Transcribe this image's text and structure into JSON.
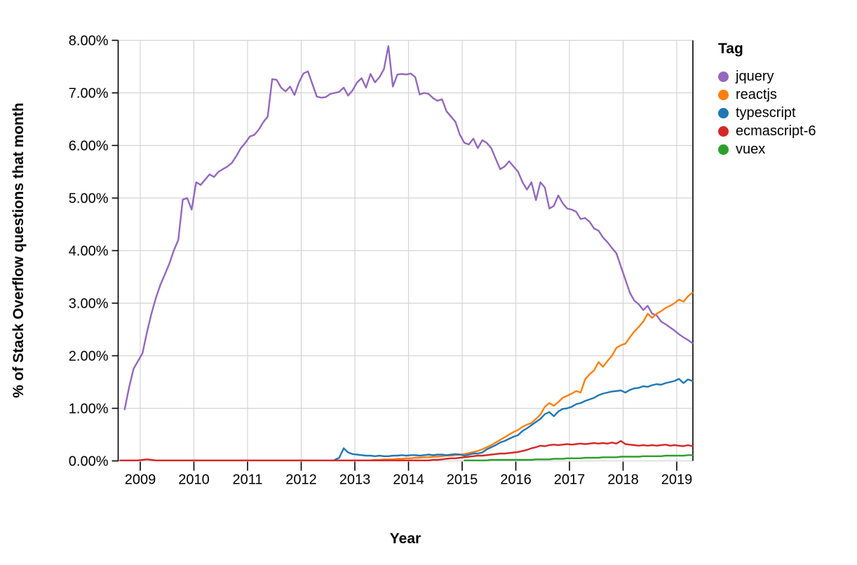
{
  "chart_data": {
    "type": "line",
    "title": "",
    "xlabel": "Year",
    "ylabel": "% of Stack Overflow questions that month",
    "legend_title": "Tag",
    "legend_position": "right",
    "grid": true,
    "xlim": [
      2008.58,
      2019.31
    ],
    "ylim": [
      0,
      8
    ],
    "x_tick_labels": [
      "2009",
      "2010",
      "2011",
      "2012",
      "2013",
      "2014",
      "2015",
      "2016",
      "2017",
      "2018",
      "2019"
    ],
    "y_tick_labels": [
      "0.00%",
      "1.00%",
      "2.00%",
      "3.00%",
      "4.00%",
      "5.00%",
      "6.00%",
      "7.00%",
      "8.00%"
    ],
    "y_tick_values": [
      0,
      1,
      2,
      3,
      4,
      5,
      6,
      7,
      8
    ],
    "x_tick_values": [
      2009,
      2010,
      2011,
      2012,
      2013,
      2014,
      2015,
      2016,
      2017,
      2018,
      2019
    ],
    "series": [
      {
        "name": "jquery",
        "color": "#9467bd",
        "start": "2008-09",
        "cadence": "monthly",
        "monthly_values": [
          0.98,
          1.4,
          1.75,
          1.9,
          2.05,
          2.45,
          2.8,
          3.1,
          3.35,
          3.55,
          3.75,
          4.0,
          4.2,
          4.97,
          5.0,
          4.78,
          5.3,
          5.25,
          5.35,
          5.45,
          5.4,
          5.5,
          5.55,
          5.6,
          5.67,
          5.8,
          5.95,
          6.05,
          6.17,
          6.2,
          6.3,
          6.44,
          6.55,
          7.26,
          7.25,
          7.1,
          7.03,
          7.12,
          6.96,
          7.2,
          7.37,
          7.41,
          7.17,
          6.93,
          6.91,
          6.92,
          6.98,
          7.0,
          7.02,
          7.1,
          6.95,
          7.05,
          7.2,
          7.28,
          7.1,
          7.36,
          7.2,
          7.3,
          7.45,
          7.89,
          7.12,
          7.35,
          7.36,
          7.35,
          7.37,
          7.3,
          6.97,
          7.0,
          6.98,
          6.9,
          6.85,
          6.88,
          6.65,
          6.55,
          6.45,
          6.2,
          6.05,
          6.02,
          6.13,
          5.95,
          6.1,
          6.05,
          5.95,
          5.75,
          5.55,
          5.6,
          5.7,
          5.6,
          5.5,
          5.3,
          5.16,
          5.3,
          4.96,
          5.3,
          5.2,
          4.8,
          4.85,
          5.05,
          4.9,
          4.8,
          4.78,
          4.74,
          4.6,
          4.62,
          4.55,
          4.42,
          4.38,
          4.25,
          4.16,
          4.05,
          3.95,
          3.7,
          3.45,
          3.2,
          3.05,
          2.98,
          2.87,
          2.95,
          2.8,
          2.77,
          2.65,
          2.6,
          2.54,
          2.48,
          2.41,
          2.35,
          2.3,
          2.24
        ]
      },
      {
        "name": "reactjs",
        "color": "#ff7f0e",
        "start": "2013-02",
        "cadence": "monthly",
        "monthly_values": [
          0.01,
          0.01,
          0.01,
          0.02,
          0.02,
          0.03,
          0.03,
          0.03,
          0.04,
          0.04,
          0.05,
          0.05,
          0.06,
          0.06,
          0.07,
          0.07,
          0.08,
          0.08,
          0.09,
          0.1,
          0.1,
          0.11,
          0.12,
          0.13,
          0.15,
          0.17,
          0.19,
          0.22,
          0.26,
          0.3,
          0.35,
          0.4,
          0.45,
          0.5,
          0.55,
          0.59,
          0.65,
          0.69,
          0.72,
          0.8,
          0.88,
          1.03,
          1.1,
          1.05,
          1.12,
          1.2,
          1.24,
          1.28,
          1.33,
          1.3,
          1.55,
          1.65,
          1.72,
          1.88,
          1.79,
          1.9,
          2.0,
          2.15,
          2.2,
          2.23,
          2.35,
          2.46,
          2.55,
          2.65,
          2.8,
          2.72,
          2.8,
          2.85,
          2.91,
          2.95,
          3.0,
          3.07,
          3.03,
          3.13,
          3.2
        ]
      },
      {
        "name": "typescript",
        "color": "#1f77b4",
        "start": "2012-08",
        "cadence": "monthly",
        "monthly_values": [
          0.02,
          0.06,
          0.24,
          0.16,
          0.13,
          0.12,
          0.11,
          0.1,
          0.1,
          0.09,
          0.1,
          0.09,
          0.09,
          0.1,
          0.1,
          0.11,
          0.1,
          0.11,
          0.11,
          0.1,
          0.11,
          0.12,
          0.11,
          0.12,
          0.12,
          0.11,
          0.12,
          0.13,
          0.12,
          0.1,
          0.12,
          0.14,
          0.14,
          0.16,
          0.22,
          0.26,
          0.3,
          0.35,
          0.38,
          0.42,
          0.46,
          0.49,
          0.57,
          0.62,
          0.68,
          0.74,
          0.8,
          0.89,
          0.93,
          0.85,
          0.94,
          0.99,
          1.0,
          1.03,
          1.08,
          1.1,
          1.14,
          1.17,
          1.2,
          1.25,
          1.28,
          1.3,
          1.32,
          1.33,
          1.34,
          1.3,
          1.35,
          1.38,
          1.39,
          1.42,
          1.41,
          1.44,
          1.46,
          1.45,
          1.48,
          1.5,
          1.52,
          1.56,
          1.48,
          1.55,
          1.52
        ]
      },
      {
        "name": "ecmascript-6",
        "color": "#d62728",
        "start": "2008-08",
        "cadence": "monthly",
        "monthly_values": [
          0.01,
          0.01,
          0.01,
          0.01,
          0.01,
          0.02,
          0.03,
          0.02,
          0.01,
          0.01,
          0.01,
          0.01,
          0.01,
          0.01,
          0.01,
          0.01,
          0.01,
          0.01,
          0.01,
          0.01,
          0.01,
          0.01,
          0.01,
          0.01,
          0.01,
          0.01,
          0.01,
          0.01,
          0.01,
          0.01,
          0.01,
          0.01,
          0.01,
          0.01,
          0.01,
          0.01,
          0.01,
          0.01,
          0.01,
          0.01,
          0.01,
          0.01,
          0.01,
          0.01,
          0.01,
          0.01,
          0.01,
          0.01,
          0.01,
          0.01,
          0.01,
          0.01,
          0.01,
          0.01,
          0.01,
          0.01,
          0.01,
          0.01,
          0.01,
          0.01,
          0.01,
          0.01,
          0.01,
          0.01,
          0.01,
          0.01,
          0.01,
          0.01,
          0.01,
          0.01,
          0.02,
          0.02,
          0.03,
          0.04,
          0.05,
          0.05,
          0.06,
          0.07,
          0.08,
          0.09,
          0.1,
          0.1,
          0.11,
          0.12,
          0.13,
          0.14,
          0.14,
          0.15,
          0.16,
          0.17,
          0.19,
          0.21,
          0.24,
          0.26,
          0.29,
          0.28,
          0.3,
          0.31,
          0.3,
          0.31,
          0.32,
          0.31,
          0.32,
          0.33,
          0.32,
          0.33,
          0.34,
          0.33,
          0.34,
          0.33,
          0.35,
          0.33,
          0.38,
          0.32,
          0.31,
          0.3,
          0.29,
          0.3,
          0.29,
          0.3,
          0.29,
          0.3,
          0.31,
          0.29,
          0.3,
          0.29,
          0.28,
          0.3,
          0.28
        ]
      },
      {
        "name": "vuex",
        "color": "#2ca02c",
        "start": "2015-01",
        "cadence": "monthly",
        "monthly_values": [
          0.01,
          0.01,
          0.01,
          0.01,
          0.01,
          0.01,
          0.02,
          0.02,
          0.02,
          0.02,
          0.02,
          0.02,
          0.02,
          0.02,
          0.02,
          0.02,
          0.03,
          0.03,
          0.03,
          0.03,
          0.04,
          0.04,
          0.04,
          0.05,
          0.05,
          0.05,
          0.05,
          0.06,
          0.06,
          0.06,
          0.06,
          0.07,
          0.07,
          0.07,
          0.07,
          0.08,
          0.08,
          0.08,
          0.08,
          0.08,
          0.09,
          0.09,
          0.09,
          0.09,
          0.09,
          0.1,
          0.1,
          0.1,
          0.1,
          0.1,
          0.11,
          0.11
        ]
      }
    ]
  },
  "legend": {
    "title": "Tag",
    "items": [
      {
        "label": "jquery",
        "color": "#9467bd"
      },
      {
        "label": "reactjs",
        "color": "#ff7f0e"
      },
      {
        "label": "typescript",
        "color": "#1f77b4"
      },
      {
        "label": "ecmascript-6",
        "color": "#d62728"
      },
      {
        "label": "vuex",
        "color": "#2ca02c"
      }
    ]
  },
  "style": {
    "grid_color": "#d4d4d4",
    "axis_color": "#000000",
    "background": "#ffffff",
    "line_width": 2.4
  }
}
